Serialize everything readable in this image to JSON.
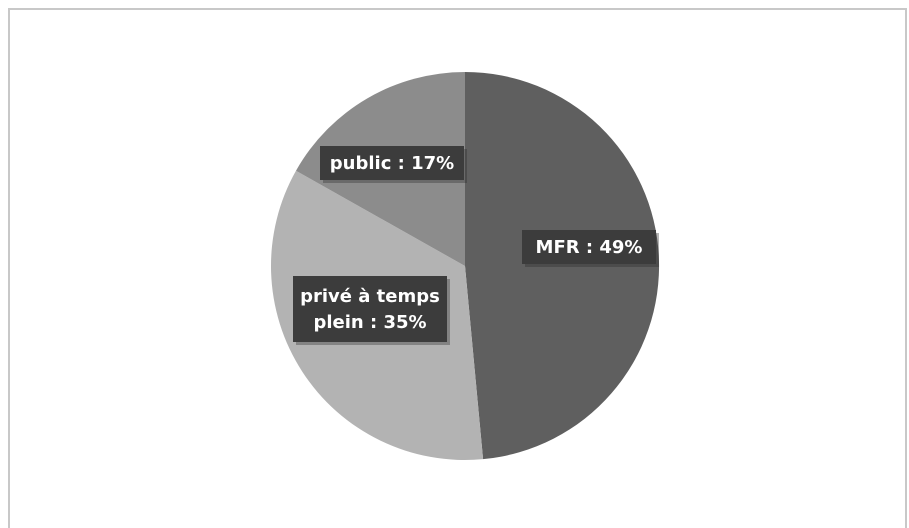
{
  "chart_data": {
    "type": "pie",
    "title": "",
    "legend": "none",
    "slices": [
      {
        "label": "MFR : 49%",
        "value": 49,
        "color": "#5f5f5f"
      },
      {
        "label": "privé à temps plein : 35%",
        "value": 35,
        "color": "#b3b3b3"
      },
      {
        "label": "public : 17%",
        "value": 17,
        "color": "#8c8c8c"
      }
    ],
    "label_box_color": "#3c3c3c"
  }
}
